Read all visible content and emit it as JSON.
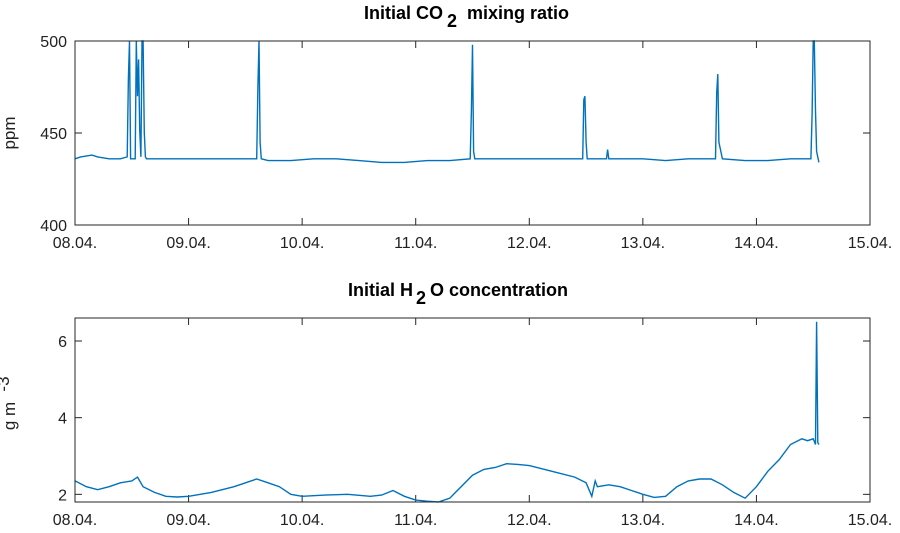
{
  "chart_data": [
    {
      "type": "line",
      "title_main": "Initial CO",
      "title_sub": "2",
      "title_rest": "mixing ratio",
      "ylabel": "ppm",
      "xlim": [
        "08.04.",
        "15.04."
      ],
      "ylim": [
        400,
        500
      ],
      "yticks": [
        "400",
        "450",
        "500"
      ],
      "xticks": [
        "08.04.",
        "09.04.",
        "10.04.",
        "11.04.",
        "12.04.",
        "13.04.",
        "14.04.",
        "15.04."
      ],
      "series_color": "#0072BD",
      "series": [
        {
          "x": [
            0.0,
            0.05,
            0.15,
            0.2,
            0.3,
            0.4,
            0.46,
            0.47,
            0.48,
            0.49,
            0.5,
            0.53,
            0.54,
            0.55,
            0.56,
            0.57,
            0.58,
            0.59,
            0.6,
            0.61,
            0.62,
            0.63,
            0.7,
            0.9,
            1.1,
            1.3,
            1.5,
            1.6,
            1.61,
            1.62,
            1.63,
            1.64,
            1.7,
            1.9,
            2.1,
            2.3,
            2.5,
            2.7,
            2.9,
            3.1,
            3.3,
            3.48,
            3.49,
            3.5,
            3.51,
            3.52,
            3.6,
            3.8,
            4.0,
            4.2,
            4.4,
            4.47,
            4.48,
            4.49,
            4.5,
            4.51,
            4.52,
            4.6,
            4.68,
            4.69,
            4.7,
            4.71,
            4.8,
            5.0,
            5.2,
            5.4,
            5.6,
            5.64,
            5.65,
            5.66,
            5.67,
            5.7,
            5.9,
            6.1,
            6.3,
            6.48,
            6.49,
            6.5,
            6.51,
            6.52,
            6.53,
            6.55
          ],
          "y": [
            436,
            437,
            438,
            437,
            436,
            436,
            437,
            480,
            500,
            436,
            436,
            436,
            500,
            470,
            490,
            452,
            437,
            500,
            500,
            450,
            437,
            436,
            436,
            436,
            436,
            436,
            436,
            436,
            475,
            500,
            445,
            436,
            435,
            435,
            436,
            436,
            435,
            434,
            434,
            435,
            435,
            436,
            462,
            498,
            440,
            436,
            436,
            436,
            436,
            436,
            436,
            436,
            468,
            470,
            445,
            436,
            436,
            436,
            436,
            441,
            436,
            436,
            436,
            436,
            435,
            436,
            436,
            436,
            472,
            482,
            445,
            436,
            435,
            435,
            436,
            436,
            460,
            500,
            500,
            462,
            440,
            434
          ]
        }
      ]
    },
    {
      "type": "line",
      "title_main": "Initial H",
      "title_sub": "2",
      "title_rest": "O concentration",
      "ylabel": "g m",
      "ylabel_sup": "-3",
      "xlim": [
        "08.04.",
        "15.04."
      ],
      "ylim": [
        1.8,
        6.6
      ],
      "yticks": [
        "2",
        "4",
        "6"
      ],
      "xticks": [
        "08.04.",
        "09.04.",
        "10.04.",
        "11.04.",
        "12.04.",
        "13.04.",
        "14.04.",
        "15.04."
      ],
      "series_color": "#0072BD",
      "series": [
        {
          "x": [
            0.0,
            0.1,
            0.2,
            0.3,
            0.4,
            0.5,
            0.55,
            0.6,
            0.7,
            0.8,
            0.9,
            1.0,
            1.2,
            1.4,
            1.6,
            1.7,
            1.8,
            1.9,
            2.0,
            2.2,
            2.4,
            2.6,
            2.7,
            2.8,
            2.9,
            3.0,
            3.1,
            3.2,
            3.3,
            3.35,
            3.4,
            3.5,
            3.6,
            3.7,
            3.8,
            3.9,
            4.0,
            4.2,
            4.4,
            4.5,
            4.55,
            4.58,
            4.6,
            4.7,
            4.8,
            4.9,
            5.0,
            5.1,
            5.2,
            5.3,
            5.4,
            5.5,
            5.6,
            5.7,
            5.8,
            5.9,
            6.0,
            6.1,
            6.2,
            6.3,
            6.4,
            6.45,
            6.5,
            6.52,
            6.53,
            6.54,
            6.55
          ],
          "y": [
            2.35,
            2.2,
            2.12,
            2.2,
            2.3,
            2.35,
            2.45,
            2.2,
            2.05,
            1.95,
            1.93,
            1.95,
            2.05,
            2.2,
            2.4,
            2.3,
            2.2,
            2.0,
            1.95,
            1.98,
            2.0,
            1.95,
            1.98,
            2.1,
            1.95,
            1.85,
            1.82,
            1.8,
            1.9,
            2.05,
            2.2,
            2.5,
            2.65,
            2.7,
            2.8,
            2.78,
            2.75,
            2.6,
            2.45,
            2.3,
            1.95,
            2.35,
            2.2,
            2.25,
            2.2,
            2.1,
            2.0,
            1.92,
            1.95,
            2.2,
            2.35,
            2.4,
            2.4,
            2.25,
            2.05,
            1.9,
            2.2,
            2.6,
            2.9,
            3.3,
            3.45,
            3.4,
            3.45,
            3.3,
            6.5,
            3.35,
            3.3
          ]
        }
      ]
    }
  ]
}
